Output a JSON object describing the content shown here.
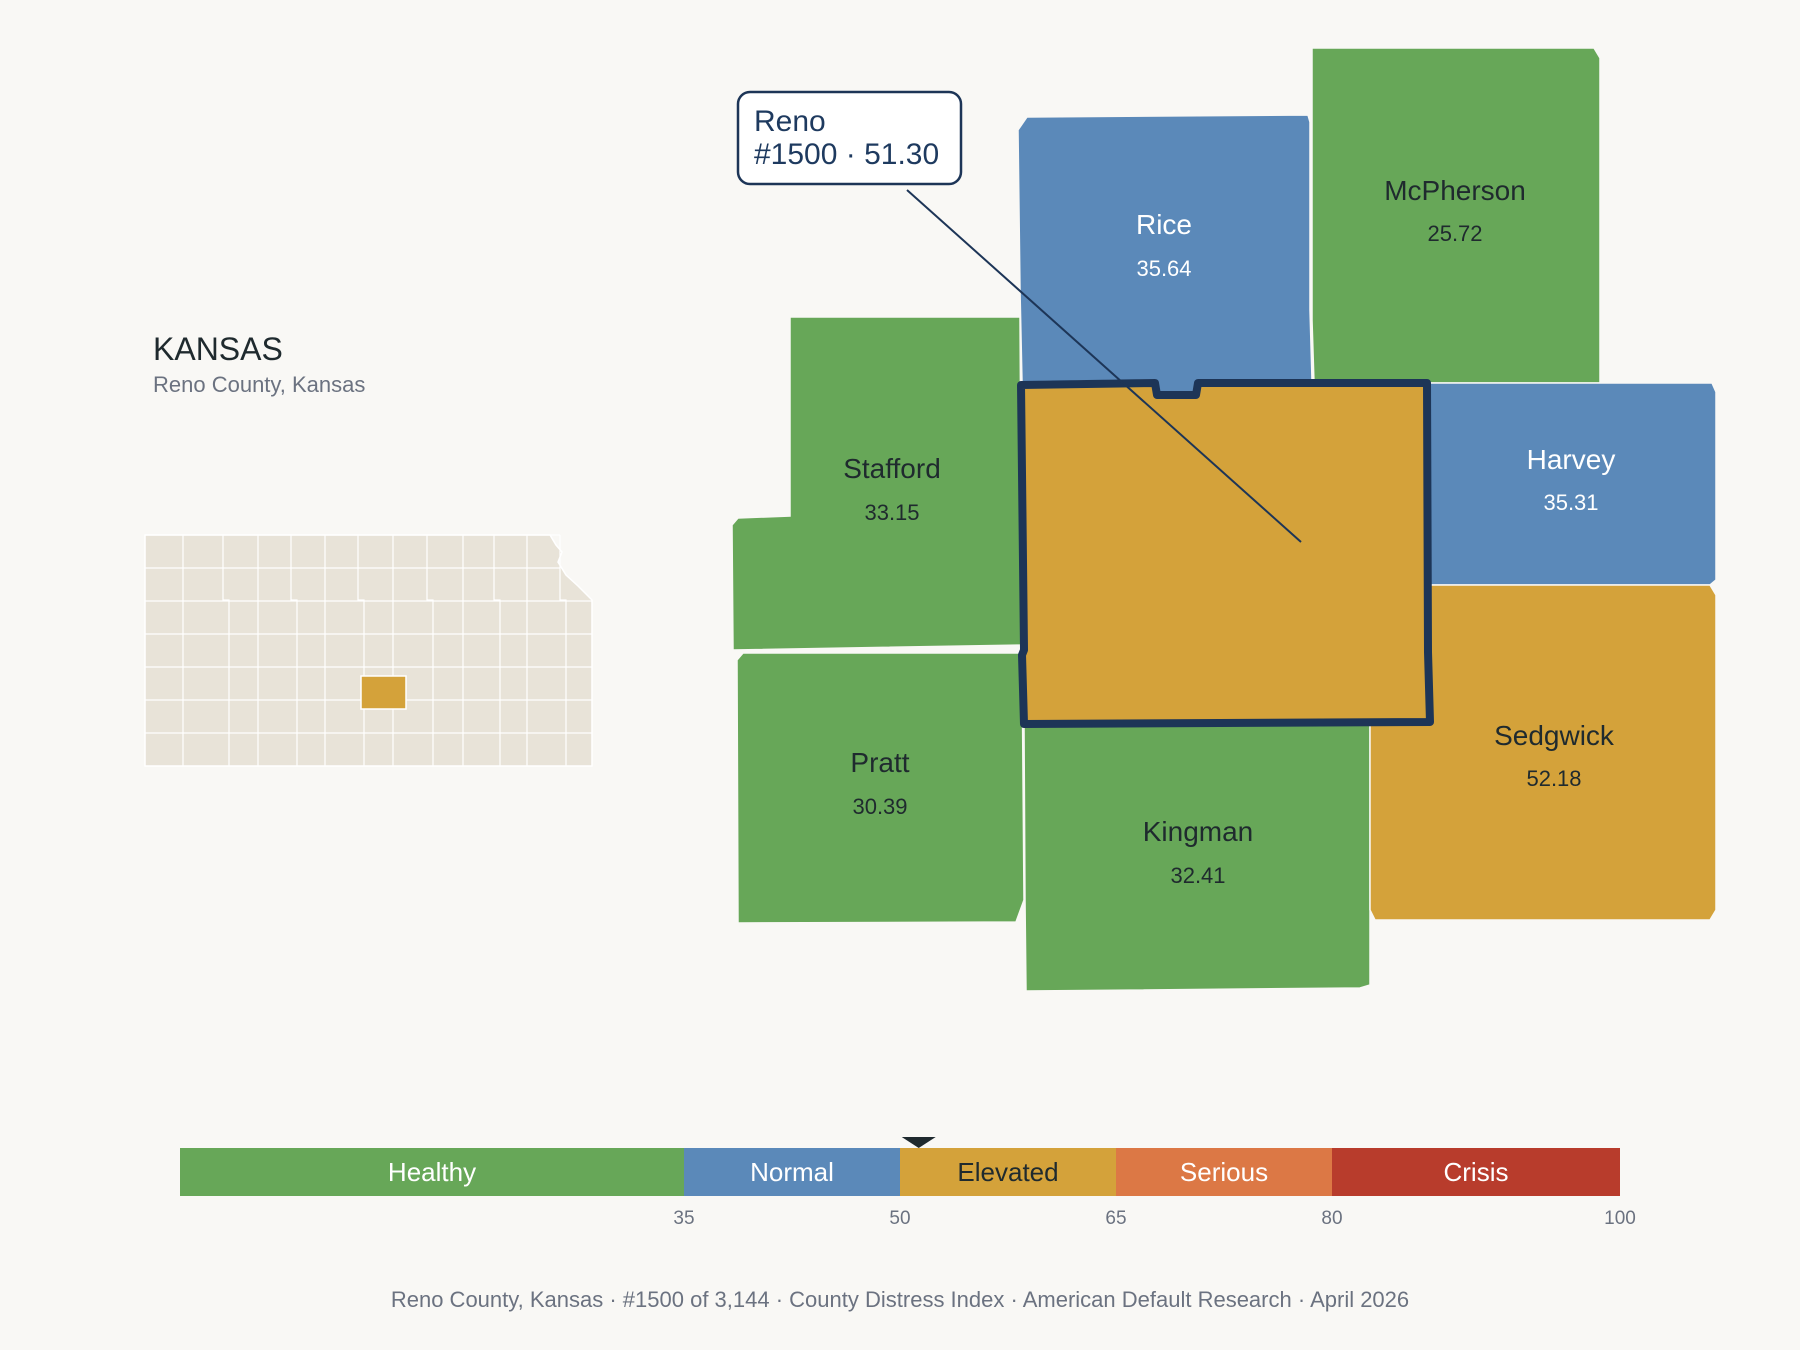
{
  "state": {
    "title": "KANSAS",
    "subtitle": "Reno County, Kansas"
  },
  "colors": {
    "healthy": "#67a758",
    "normal": "#5b89b9",
    "elevated": "#d4a23a",
    "serious": "#dc7845",
    "crisis": "#b83c2c",
    "outline": "#1d3557",
    "inset_fill": "#e8e3d8"
  },
  "tooltip": {
    "line1": "Reno",
    "line2": "#1500 · 51.30"
  },
  "counties": [
    {
      "id": "reno",
      "name": "Reno",
      "value": "51.30",
      "category": "elevated",
      "selected": true
    },
    {
      "id": "rice",
      "name": "Rice",
      "value": "35.64",
      "category": "normal"
    },
    {
      "id": "mcpherson",
      "name": "McPherson",
      "value": "25.72",
      "category": "healthy"
    },
    {
      "id": "stafford",
      "name": "Stafford",
      "value": "33.15",
      "category": "healthy"
    },
    {
      "id": "harvey",
      "name": "Harvey",
      "value": "35.31",
      "category": "normal"
    },
    {
      "id": "pratt",
      "name": "Pratt",
      "value": "30.39",
      "category": "healthy"
    },
    {
      "id": "kingman",
      "name": "Kingman",
      "value": "32.41",
      "category": "healthy"
    },
    {
      "id": "sedgwick",
      "name": "Sedgwick",
      "value": "52.18",
      "category": "elevated"
    }
  ],
  "scale": {
    "min": 0,
    "max": 100,
    "marker_value": 51.3,
    "segments": [
      {
        "label": "Healthy",
        "from": 0,
        "to": 35,
        "category": "healthy"
      },
      {
        "label": "Normal",
        "from": 35,
        "to": 50,
        "category": "normal"
      },
      {
        "label": "Elevated",
        "from": 50,
        "to": 65,
        "category": "elevated"
      },
      {
        "label": "Serious",
        "from": 65,
        "to": 80,
        "category": "serious"
      },
      {
        "label": "Crisis",
        "from": 80,
        "to": 100,
        "category": "crisis"
      }
    ],
    "ticks": [
      "35",
      "50",
      "65",
      "80",
      "100"
    ]
  },
  "footer": {
    "items": [
      "Reno County, Kansas",
      "#1500 of 3,144",
      "County Distress Index",
      "American Default Research",
      "April 2026"
    ],
    "separator": "·"
  }
}
